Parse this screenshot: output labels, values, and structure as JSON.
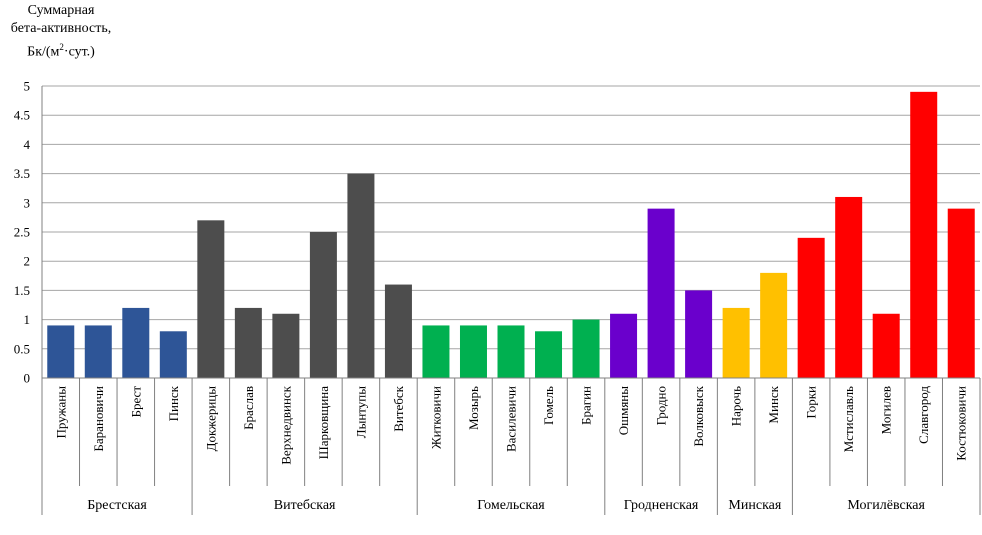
{
  "chart_data": {
    "type": "bar",
    "ylabel_lines": [
      "Суммарная",
      "бета-активность,",
      "Бк/(м",
      "2",
      "·сут.)"
    ],
    "ylim": [
      0,
      5
    ],
    "yticks": [
      "0",
      "0.5",
      "1",
      "1.5",
      "2",
      "2.5",
      "3",
      "3.5",
      "4",
      "4.5",
      "5"
    ],
    "grid": true,
    "categories": [
      "Пружаны",
      "Барановичи",
      "Брест",
      "Пинск",
      "Докжерицы",
      "Браслав",
      "Верхнедвинск",
      "Шарковщина",
      "Лынтупы",
      "Витебск",
      "Житковичи",
      "Мозырь",
      "Василевичи",
      "Гомель",
      "Брагин",
      "Ошмяны",
      "Гродно",
      "Волковыск",
      "Нарочь",
      "Минск",
      "Горки",
      "Мстиславль",
      "Могилев",
      "Славгород",
      "Костюковичи"
    ],
    "values": [
      0.9,
      0.9,
      1.2,
      0.8,
      2.7,
      1.2,
      1.1,
      2.5,
      3.5,
      1.6,
      0.9,
      0.9,
      0.9,
      0.8,
      1.0,
      1.1,
      2.9,
      1.5,
      1.2,
      1.8,
      2.4,
      3.1,
      1.1,
      4.9,
      2.9
    ],
    "groups": [
      {
        "name": "Брестская",
        "count": 4,
        "color": "#2e5597"
      },
      {
        "name": "Витебская",
        "count": 6,
        "color": "#4d4d4d"
      },
      {
        "name": "Гомельская",
        "count": 5,
        "color": "#00b050"
      },
      {
        "name": "Гродненская",
        "count": 3,
        "color": "#6a00cc"
      },
      {
        "name": "Минская",
        "count": 2,
        "color": "#ffc000"
      },
      {
        "name": "Могилёвская",
        "count": 5,
        "color": "#ff0000"
      }
    ]
  }
}
